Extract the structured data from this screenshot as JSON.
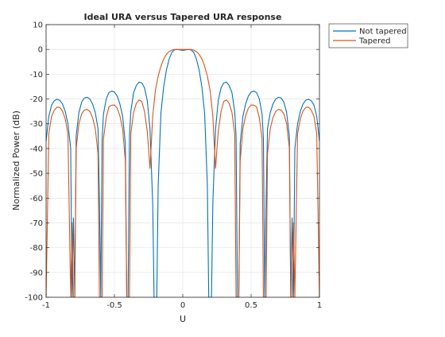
{
  "chart_data": {
    "type": "line",
    "title": "Ideal URA versus Tapered URA response",
    "xlabel": "U",
    "ylabel": "Normalized Power (dB)",
    "xlim": [
      -1,
      1
    ],
    "ylim": [
      -100,
      10
    ],
    "xticks": [
      -1,
      -0.5,
      0,
      0.5,
      1
    ],
    "xtick_labels": [
      "-1",
      "-0.5",
      "0",
      "0.5",
      "1"
    ],
    "yticks": [
      10,
      0,
      -10,
      -20,
      -30,
      -40,
      -50,
      -60,
      -70,
      -80,
      -90,
      -100
    ],
    "ytick_labels": [
      "10",
      "0",
      "-10",
      "-20",
      "-30",
      "-40",
      "-50",
      "-60",
      "-70",
      "-80",
      "-90",
      "-100"
    ],
    "grid": true,
    "legend_position": "outside-top-right",
    "series": [
      {
        "name": "Not tapered",
        "color": "#0072BD",
        "x": [
          -1,
          -0.98,
          -0.96,
          -0.94,
          -0.92,
          -0.9,
          -0.88,
          -0.86,
          -0.84,
          -0.82,
          -0.81,
          -0.8,
          -0.79,
          -0.78,
          -0.76,
          -0.74,
          -0.72,
          -0.7,
          -0.68,
          -0.66,
          -0.64,
          -0.62,
          -0.61,
          -0.6,
          -0.59,
          -0.58,
          -0.56,
          -0.54,
          -0.52,
          -0.5,
          -0.48,
          -0.46,
          -0.44,
          -0.42,
          -0.41,
          -0.4,
          -0.39,
          -0.38,
          -0.36,
          -0.34,
          -0.32,
          -0.3,
          -0.28,
          -0.26,
          -0.24,
          -0.22,
          -0.21,
          -0.2,
          -0.19,
          -0.18,
          -0.16,
          -0.14,
          -0.12,
          -0.1,
          -0.08,
          -0.06,
          -0.04,
          -0.02,
          0,
          0.02,
          0.04,
          0.06,
          0.08,
          0.1,
          0.12,
          0.14,
          0.16,
          0.18,
          0.19,
          0.2,
          0.21,
          0.22,
          0.24,
          0.26,
          0.28,
          0.3,
          0.32,
          0.34,
          0.36,
          0.38,
          0.39,
          0.4,
          0.41,
          0.42,
          0.44,
          0.46,
          0.48,
          0.5,
          0.52,
          0.54,
          0.56,
          0.58,
          0.59,
          0.6,
          0.61,
          0.62,
          0.64,
          0.66,
          0.68,
          0.7,
          0.72,
          0.74,
          0.76,
          0.78,
          0.79,
          0.8,
          0.81,
          0.82,
          0.84,
          0.86,
          0.88,
          0.9,
          0.92,
          0.94,
          0.96,
          0.98,
          1
        ],
        "y": [
          -37,
          -27,
          -22.5,
          -20.7,
          -20.1,
          -20.5,
          -22,
          -25,
          -30,
          -40,
          -100,
          -68,
          -100,
          -35,
          -25.5,
          -21.3,
          -19.6,
          -19.3,
          -20,
          -22,
          -25.5,
          -32,
          -60,
          -100,
          -36,
          -26,
          -20,
          -17.4,
          -16.8,
          -17.2,
          -18.8,
          -22,
          -27,
          -38,
          -100,
          -100,
          -35,
          -25,
          -17.5,
          -14.6,
          -13.2,
          -13.5,
          -15.5,
          -20.5,
          -32,
          -62,
          -100,
          -100,
          -100,
          -55,
          -25.8,
          -15.2,
          -8.4,
          -3.9,
          -1.2,
          -0.15,
          0,
          -0.2,
          -0.4,
          -0.2,
          0,
          -0.15,
          -1.2,
          -3.9,
          -8.4,
          -15.2,
          -25.8,
          -55,
          -100,
          -100,
          -100,
          -62,
          -32,
          -20.5,
          -15.5,
          -13.5,
          -13.2,
          -14.6,
          -17.5,
          -25,
          -35,
          -100,
          -100,
          -38,
          -27,
          -22,
          -18.8,
          -17.2,
          -16.8,
          -17.4,
          -20,
          -26,
          -36,
          -100,
          -60,
          -32,
          -25.5,
          -22,
          -20,
          -19.3,
          -19.6,
          -21.3,
          -25.5,
          -35,
          -100,
          -68,
          -100,
          -40,
          -30,
          -25,
          -22,
          -20.5,
          -20.1,
          -20.7,
          -22.5,
          -27,
          -37
        ]
      },
      {
        "name": "Tapered",
        "color": "#D95319",
        "x": [
          -1,
          -0.98,
          -0.96,
          -0.94,
          -0.92,
          -0.9,
          -0.88,
          -0.86,
          -0.84,
          -0.82,
          -0.81,
          -0.8,
          -0.79,
          -0.78,
          -0.76,
          -0.74,
          -0.72,
          -0.7,
          -0.68,
          -0.66,
          -0.64,
          -0.62,
          -0.61,
          -0.6,
          -0.59,
          -0.58,
          -0.56,
          -0.54,
          -0.52,
          -0.5,
          -0.48,
          -0.46,
          -0.44,
          -0.42,
          -0.41,
          -0.4,
          -0.39,
          -0.38,
          -0.36,
          -0.34,
          -0.32,
          -0.3,
          -0.28,
          -0.26,
          -0.25,
          -0.24,
          -0.23,
          -0.22,
          -0.2,
          -0.18,
          -0.16,
          -0.14,
          -0.12,
          -0.1,
          -0.08,
          -0.06,
          -0.04,
          -0.02,
          0,
          0.02,
          0.04,
          0.06,
          0.08,
          0.1,
          0.12,
          0.14,
          0.16,
          0.18,
          0.2,
          0.22,
          0.23,
          0.24,
          0.25,
          0.26,
          0.28,
          0.3,
          0.32,
          0.34,
          0.36,
          0.38,
          0.39,
          0.4,
          0.41,
          0.42,
          0.44,
          0.46,
          0.48,
          0.5,
          0.52,
          0.54,
          0.56,
          0.58,
          0.59,
          0.6,
          0.61,
          0.62,
          0.64,
          0.66,
          0.68,
          0.7,
          0.72,
          0.74,
          0.76,
          0.78,
          0.79,
          0.8,
          0.81,
          0.82,
          0.84,
          0.86,
          0.88,
          0.9,
          0.92,
          0.94,
          0.96,
          0.98,
          1
        ],
        "y": [
          -100,
          -34,
          -27,
          -24.5,
          -23.3,
          -23.4,
          -24.8,
          -28,
          -34,
          -100,
          -70,
          -100,
          -100,
          -40,
          -30,
          -26,
          -24.5,
          -24.2,
          -25,
          -27.5,
          -32,
          -42,
          -100,
          -100,
          -100,
          -36,
          -27.5,
          -23.2,
          -22.5,
          -22.4,
          -23.7,
          -26.8,
          -32,
          -45,
          -100,
          -100,
          -100,
          -34,
          -25.5,
          -21.8,
          -20.4,
          -21,
          -25,
          -33,
          -40,
          -48,
          -38,
          -27,
          -16.5,
          -10.8,
          -6.8,
          -3.9,
          -2,
          -0.9,
          -0.3,
          0,
          0,
          0,
          0,
          0,
          0,
          0,
          -0.3,
          -0.9,
          -2,
          -3.9,
          -6.8,
          -10.8,
          -16.5,
          -27,
          -38,
          -48,
          -40,
          -33,
          -25,
          -21,
          -20.4,
          -21.8,
          -25.5,
          -34,
          -100,
          -100,
          -100,
          -45,
          -32,
          -26.8,
          -23.7,
          -22.4,
          -22.5,
          -23.2,
          -27.5,
          -36,
          -100,
          -100,
          -100,
          -42,
          -32,
          -27.5,
          -25,
          -24.2,
          -24.5,
          -26,
          -30,
          -40,
          -100,
          -100,
          -70,
          -100,
          -34,
          -28,
          -24.8,
          -23.4,
          -23.3,
          -24.5,
          -27,
          -34,
          -100
        ]
      }
    ]
  }
}
